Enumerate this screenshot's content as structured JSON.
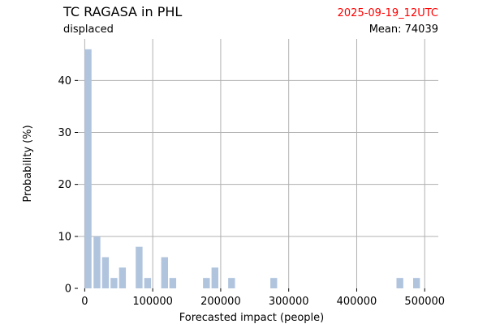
{
  "chart_data": {
    "type": "bar",
    "title": "TC RAGASA in PHL",
    "subtitle": "displaced",
    "date": "2025-09-19_12UTC",
    "mean_text": "Mean: 74039",
    "xlabel": "Forecasted impact (people)",
    "ylabel": "Probability (%)",
    "xlim": [
      -10000,
      520000
    ],
    "ylim": [
      0,
      48
    ],
    "xticks": [
      0,
      100000,
      200000,
      300000,
      400000,
      500000
    ],
    "xtick_labels": [
      "0",
      "100000",
      "200000",
      "300000",
      "400000",
      "500000"
    ],
    "yticks": [
      0,
      10,
      20,
      30,
      40
    ],
    "ytick_labels": [
      "0",
      "10",
      "20",
      "30",
      "40"
    ],
    "grid": true,
    "bin_width": 12400,
    "bins": [
      {
        "x": 5000,
        "value": 46
      },
      {
        "x": 18000,
        "value": 10
      },
      {
        "x": 30500,
        "value": 6
      },
      {
        "x": 43000,
        "value": 2
      },
      {
        "x": 55500,
        "value": 4
      },
      {
        "x": 80000,
        "value": 8
      },
      {
        "x": 92500,
        "value": 2
      },
      {
        "x": 117500,
        "value": 6
      },
      {
        "x": 129500,
        "value": 2
      },
      {
        "x": 179000,
        "value": 2
      },
      {
        "x": 191500,
        "value": 4
      },
      {
        "x": 216000,
        "value": 2
      },
      {
        "x": 278000,
        "value": 2
      },
      {
        "x": 463500,
        "value": 2
      },
      {
        "x": 488000,
        "value": 2
      }
    ],
    "colors": {
      "bar": "#b0c4de",
      "date": "#ff0000",
      "grid": "#b0b0b0",
      "text": "#000000"
    }
  }
}
